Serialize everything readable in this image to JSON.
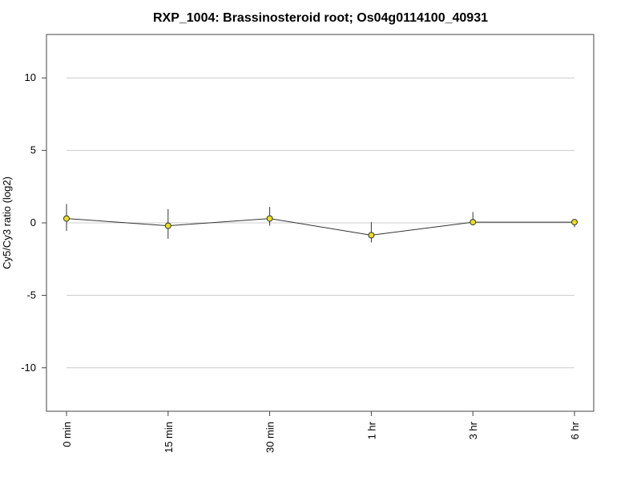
{
  "chart_data": {
    "type": "line",
    "title": "RXP_1004: Brassinosteroid root; Os04g0114100_40931",
    "xlabel": "",
    "ylabel": "Cy5/Cy3 ratio (log2)",
    "categories": [
      "0 min",
      "15 min",
      "30 min",
      "1 hr",
      "3 hr",
      "6 hr"
    ],
    "series": [
      {
        "values": [
          0.3,
          -0.2,
          0.3,
          -0.85,
          0.05,
          0.05
        ],
        "error_low": [
          -0.55,
          -1.1,
          -0.2,
          -1.35,
          -0.15,
          -0.3
        ],
        "error_high": [
          1.3,
          0.95,
          1.1,
          0.05,
          0.75,
          0.25
        ]
      }
    ],
    "ylim": [
      -13,
      13
    ],
    "yticks": [
      10,
      5,
      0,
      -5,
      -10
    ],
    "ytick_labels": [
      "10",
      "5",
      "0",
      "-5",
      "-10"
    ],
    "grid": true,
    "legend": "none",
    "colors": {
      "line": "#333333",
      "marker_fill": "#e8e01a",
      "marker_stroke": "#333333",
      "grid": "#cccccc",
      "frame": "#444444"
    }
  }
}
